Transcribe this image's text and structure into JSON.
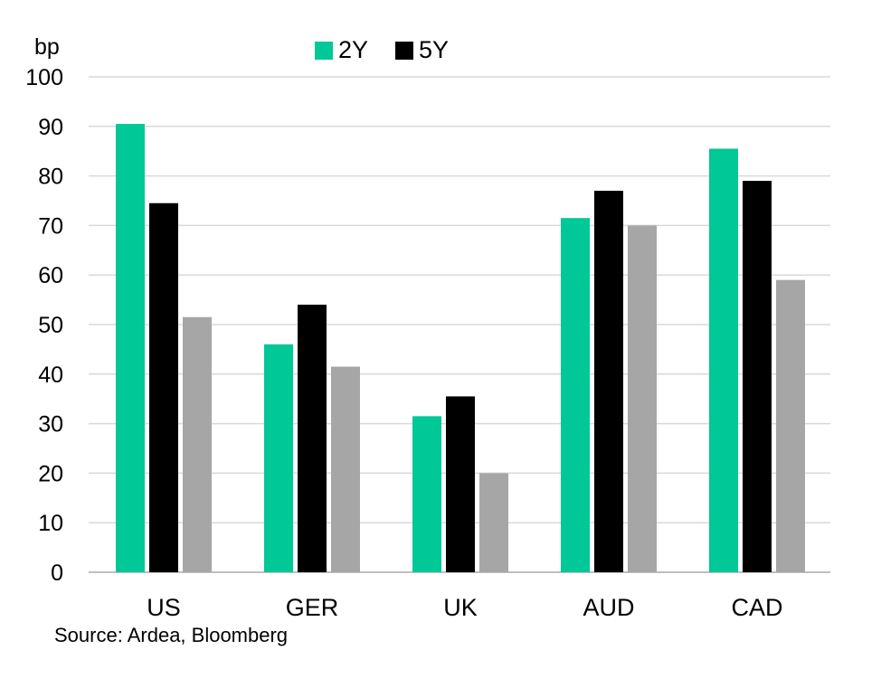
{
  "chart_data": {
    "type": "bar",
    "title": "",
    "xlabel": "",
    "ylabel": "bp",
    "ylim": [
      0,
      100
    ],
    "yticks": [
      0,
      10,
      20,
      30,
      40,
      50,
      60,
      70,
      80,
      90,
      100
    ],
    "grid": true,
    "legend_position": "top-center",
    "categories": [
      "US",
      "GER",
      "UK",
      "AUD",
      "CAD"
    ],
    "series": [
      {
        "name": "2Y",
        "color": "#00c896",
        "values": [
          90.5,
          46,
          31.5,
          71.5,
          85.5
        ]
      },
      {
        "name": "5Y",
        "color": "#000000",
        "values": [
          74.5,
          54,
          35.5,
          77,
          79
        ]
      },
      {
        "color": "#a6a6a6",
        "values": [
          51.5,
          41.5,
          20,
          70,
          59
        ]
      }
    ]
  },
  "source_text": "Source: Ardea, Bloomberg"
}
